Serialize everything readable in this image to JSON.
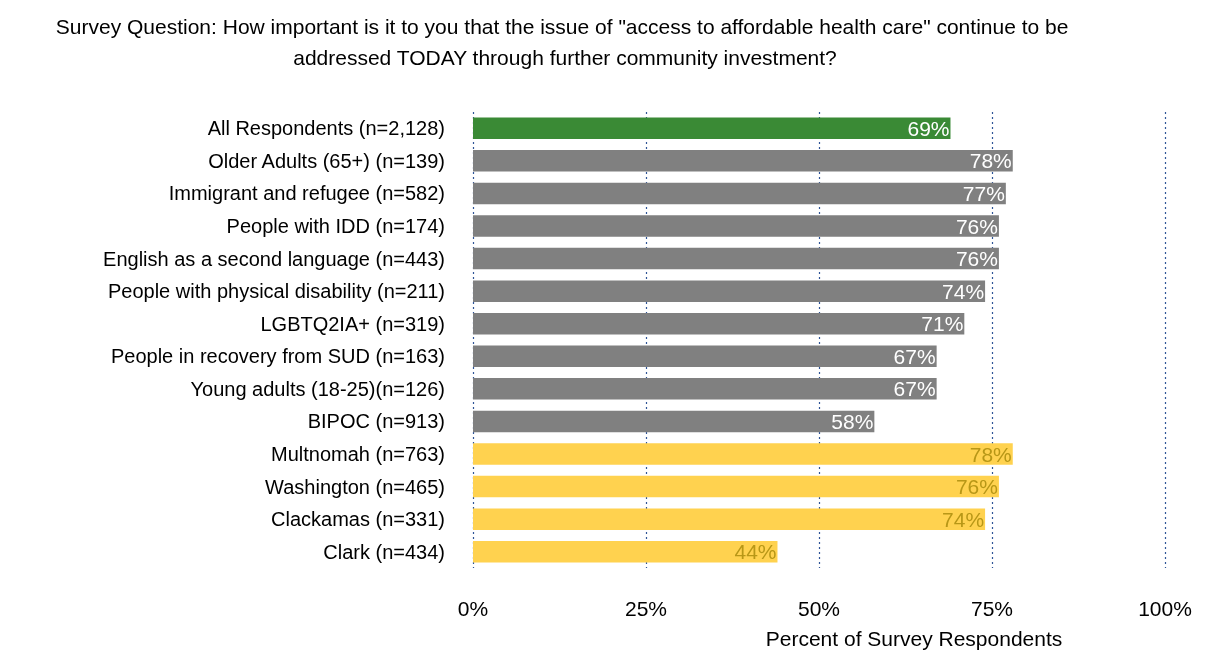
{
  "chart_data": {
    "type": "bar",
    "orientation": "horizontal",
    "title": "Survey Question: How important is it to you that the issue of \"access to affordable health care\" continue to be addressed TODAY through further community investment?",
    "xlabel": "Percent of Survey Respondents",
    "categories": [
      "All Respondents (n=2,128)",
      "Older Adults (65+) (n=139)",
      "Immigrant and refugee (n=582)",
      "People with IDD (n=174)",
      "English as a second language (n=443)",
      "People with physical disability (n=211)",
      "LGBTQ2IA+ (n=319)",
      "People in recovery from SUD (n=163)",
      "Young adults (18-25)(n=126)",
      "BIPOC (n=913)",
      "Multnomah (n=763)",
      "Washington (n=465)",
      "Clackamas (n=331)",
      "Clark (n=434)"
    ],
    "values": [
      69,
      78,
      77,
      76,
      76,
      74,
      71,
      67,
      67,
      58,
      78,
      76,
      74,
      44
    ],
    "value_labels": [
      "69%",
      "78%",
      "77%",
      "76%",
      "76%",
      "74%",
      "71%",
      "67%",
      "67%",
      "58%",
      "78%",
      "76%",
      "74%",
      "44%"
    ],
    "colors": [
      "#3a8a35",
      "#808080",
      "#808080",
      "#808080",
      "#808080",
      "#808080",
      "#808080",
      "#808080",
      "#808080",
      "#808080",
      "#ffd24f",
      "#ffd24f",
      "#ffd24f",
      "#ffd24f"
    ],
    "xlim": [
      0,
      100
    ],
    "xticks": [
      {
        "value": 0,
        "label": "0%"
      },
      {
        "value": 25,
        "label": "25%"
      },
      {
        "value": 50,
        "label": "50%"
      },
      {
        "value": 75,
        "label": "75%"
      },
      {
        "value": 100,
        "label": "100%"
      }
    ],
    "grid": "x"
  }
}
